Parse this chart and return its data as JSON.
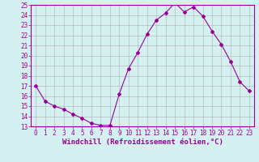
{
  "x": [
    0,
    1,
    2,
    3,
    4,
    5,
    6,
    7,
    8,
    9,
    10,
    11,
    12,
    13,
    14,
    15,
    16,
    17,
    18,
    19,
    20,
    21,
    22,
    23
  ],
  "y": [
    17,
    15.5,
    15,
    14.7,
    14.2,
    13.8,
    13.3,
    13.1,
    13.1,
    16.2,
    18.7,
    20.3,
    22.1,
    23.5,
    24.2,
    25.2,
    24.3,
    24.8,
    23.9,
    22.4,
    21.1,
    19.4,
    17.4,
    16.5
  ],
  "line_color": "#990099",
  "marker": "D",
  "markersize": 2,
  "linewidth": 0.8,
  "xlabel": "Windchill (Refroidissement éolien,°C)",
  "xlabel_fontsize": 6.5,
  "bg_color": "#d4f0f0",
  "grid_color": "#b0b0b0",
  "ylim": [
    13,
    25
  ],
  "yticks": [
    13,
    14,
    15,
    16,
    17,
    18,
    19,
    20,
    21,
    22,
    23,
    24,
    25
  ],
  "xticks": [
    0,
    1,
    2,
    3,
    4,
    5,
    6,
    7,
    8,
    9,
    10,
    11,
    12,
    13,
    14,
    15,
    16,
    17,
    18,
    19,
    20,
    21,
    22,
    23
  ],
  "tick_fontsize": 5.5,
  "tick_color": "#990099",
  "spine_color": "#990099",
  "xlim": [
    -0.5,
    23.5
  ]
}
